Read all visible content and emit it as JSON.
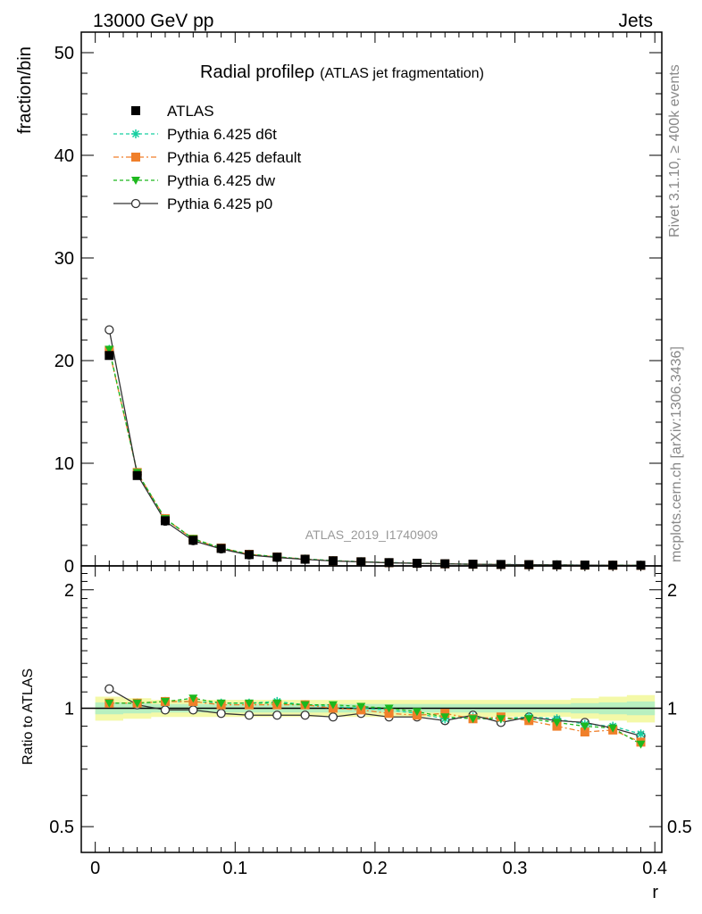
{
  "header": {
    "left": "13000 GeV pp",
    "right": "Jets"
  },
  "side": {
    "rivet": "Rivet 3.1.10, ≥ 400k events",
    "mcplots": "mcplots.cern.ch [arXiv:1306.3436]"
  },
  "chart_data": [
    {
      "type": "line",
      "title": "Radial profile",
      "title_symbol": "ρ",
      "subtitle": "(ATLAS jet fragmentation)",
      "ylabel": "fraction/bin",
      "watermark": "ATLAS_2019_I1740909",
      "xlim": [
        -0.01,
        0.405
      ],
      "ylim": [
        0,
        52
      ],
      "y_ticks": [
        "0",
        "10",
        "20",
        "30",
        "40",
        "50"
      ],
      "x": [
        0.01,
        0.03,
        0.05,
        0.07,
        0.09,
        0.11,
        0.13,
        0.15,
        0.17,
        0.19,
        0.21,
        0.23,
        0.25,
        0.27,
        0.29,
        0.31,
        0.33,
        0.35,
        0.37,
        0.39
      ],
      "legend_placement": "top-left",
      "series": [
        {
          "name": "ATLAS",
          "key": "atlas",
          "color": "#000000",
          "marker": "square-filled",
          "dash": "none",
          "values": [
            20.5,
            8.8,
            4.4,
            2.5,
            1.7,
            1.1,
            0.85,
            0.65,
            0.5,
            0.4,
            0.32,
            0.26,
            0.21,
            0.17,
            0.14,
            0.12,
            0.1,
            0.08,
            0.07,
            0.06
          ]
        },
        {
          "name": "Pythia 6.425 d6t",
          "key": "d6t",
          "color": "#17cfa0",
          "marker": "star",
          "dash": "4,3",
          "values": [
            21.1,
            9.1,
            4.6,
            2.6,
            1.75,
            1.14,
            0.88,
            0.67,
            0.51,
            0.4,
            0.32,
            0.26,
            0.2,
            0.165,
            0.135,
            0.115,
            0.095,
            0.075,
            0.063,
            0.052
          ]
        },
        {
          "name": "Pythia 6.425 default",
          "key": "default",
          "color": "#f07f2a",
          "marker": "square-filled",
          "dash": "6,3,2,3",
          "values": [
            21.0,
            9.1,
            4.6,
            2.6,
            1.74,
            1.13,
            0.87,
            0.66,
            0.5,
            0.4,
            0.31,
            0.25,
            0.2,
            0.16,
            0.13,
            0.11,
            0.09,
            0.07,
            0.062,
            0.049
          ]
        },
        {
          "name": "Pythia 6.425 dw",
          "key": "dw",
          "color": "#1db81d",
          "marker": "triangle-down",
          "dash": "4,3",
          "values": [
            21.1,
            9.1,
            4.6,
            2.65,
            1.75,
            1.14,
            0.88,
            0.66,
            0.51,
            0.4,
            0.32,
            0.25,
            0.2,
            0.16,
            0.13,
            0.11,
            0.093,
            0.073,
            0.063,
            0.049
          ]
        },
        {
          "name": "Pythia 6.425 p0",
          "key": "p0",
          "color": "#333333",
          "marker": "circle-open",
          "dash": "none",
          "values": [
            23.0,
            8.9,
            4.35,
            2.45,
            1.65,
            1.06,
            0.82,
            0.63,
            0.48,
            0.39,
            0.3,
            0.25,
            0.2,
            0.16,
            0.13,
            0.115,
            0.095,
            0.075,
            0.063,
            0.051
          ]
        }
      ]
    },
    {
      "type": "line",
      "ylabel": "Ratio to ATLAS",
      "xlabel": "r",
      "xlim": [
        -0.01,
        0.405
      ],
      "ylim": [
        0.43,
        2.3
      ],
      "y_scale": "log",
      "y_ticks": [
        "0.5",
        "1",
        "2"
      ],
      "x_ticks": [
        "0",
        "0.1",
        "0.2",
        "0.3",
        "0.4"
      ],
      "x": [
        0.01,
        0.03,
        0.05,
        0.07,
        0.09,
        0.11,
        0.13,
        0.15,
        0.17,
        0.19,
        0.21,
        0.23,
        0.25,
        0.27,
        0.29,
        0.31,
        0.33,
        0.35,
        0.37,
        0.39
      ],
      "band_outer": [
        0.07,
        0.06,
        0.05,
        0.05,
        0.05,
        0.05,
        0.05,
        0.05,
        0.05,
        0.05,
        0.05,
        0.05,
        0.05,
        0.05,
        0.05,
        0.05,
        0.05,
        0.06,
        0.07,
        0.08
      ],
      "band_inner": [
        0.035,
        0.03,
        0.025,
        0.025,
        0.025,
        0.025,
        0.025,
        0.025,
        0.025,
        0.025,
        0.025,
        0.025,
        0.025,
        0.025,
        0.025,
        0.025,
        0.025,
        0.03,
        0.035,
        0.04
      ],
      "series": [
        {
          "name": "Pythia 6.425 d6t",
          "key": "d6t",
          "color": "#17cfa0",
          "marker": "star",
          "dash": "4,3",
          "values": [
            1.03,
            1.03,
            1.04,
            1.04,
            1.03,
            1.03,
            1.04,
            1.02,
            1.01,
            1.0,
            0.99,
            0.97,
            0.94,
            0.95,
            0.94,
            0.95,
            0.94,
            0.91,
            0.9,
            0.86
          ]
        },
        {
          "name": "Pythia 6.425 default",
          "key": "default",
          "color": "#f07f2a",
          "marker": "square-filled",
          "dash": "6,3,2,3",
          "values": [
            1.03,
            1.03,
            1.04,
            1.04,
            1.02,
            1.02,
            1.02,
            1.02,
            1.0,
            0.99,
            0.97,
            0.96,
            0.97,
            0.94,
            0.95,
            0.93,
            0.9,
            0.87,
            0.88,
            0.82
          ]
        },
        {
          "name": "Pythia 6.425 dw",
          "key": "dw",
          "color": "#1db81d",
          "marker": "triangle-down",
          "dash": "4,3",
          "values": [
            1.03,
            1.03,
            1.04,
            1.06,
            1.03,
            1.03,
            1.03,
            1.02,
            1.02,
            1.01,
            1.0,
            0.98,
            0.95,
            0.94,
            0.94,
            0.94,
            0.92,
            0.9,
            0.89,
            0.81
          ]
        },
        {
          "name": "Pythia 6.425 p0",
          "key": "p0",
          "color": "#333333",
          "marker": "circle-open",
          "dash": "none",
          "values": [
            1.12,
            1.02,
            0.99,
            0.99,
            0.97,
            0.96,
            0.96,
            0.96,
            0.95,
            0.97,
            0.95,
            0.95,
            0.93,
            0.96,
            0.92,
            0.95,
            0.93,
            0.92,
            0.89,
            0.85
          ]
        }
      ]
    }
  ]
}
